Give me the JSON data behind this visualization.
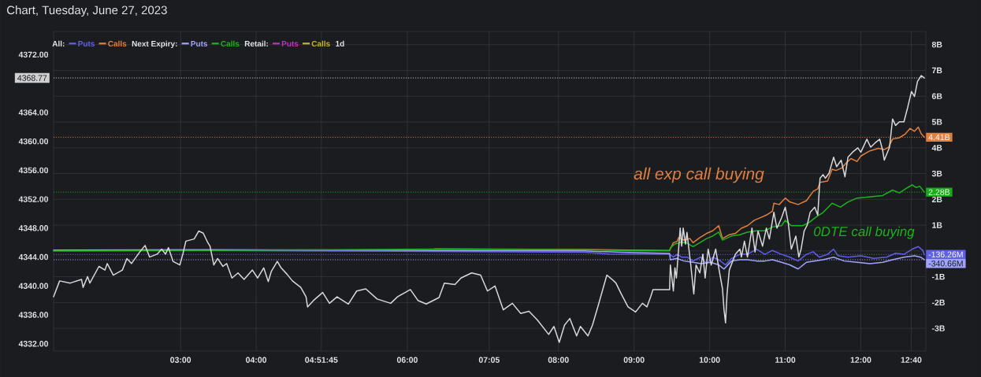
{
  "chart_data": {
    "type": "line",
    "title": "Chart, Tuesday, June 27, 2023",
    "xlim": [
      1.32,
      12.86
    ],
    "xticks": [
      {
        "value": 3,
        "label": "03:00"
      },
      {
        "value": 4,
        "label": "04:00"
      },
      {
        "value": 4.8625,
        "label": "04:51:45"
      },
      {
        "value": 6,
        "label": "06:00"
      },
      {
        "value": 7.0833,
        "label": "07:05"
      },
      {
        "value": 8,
        "label": "08:00"
      },
      {
        "value": 9,
        "label": "09:00"
      },
      {
        "value": 10,
        "label": "10:00"
      },
      {
        "value": 11,
        "label": "11:00"
      },
      {
        "value": 12,
        "label": "12:00"
      },
      {
        "value": 12.6667,
        "label": "12:40"
      }
    ],
    "ylim": [
      4331,
      4375.2
    ],
    "yticks": [
      {
        "value": 4332,
        "label": "4332.00"
      },
      {
        "value": 4336,
        "label": "4336.00"
      },
      {
        "value": 4340,
        "label": "4340.00"
      },
      {
        "value": 4344,
        "label": "4344.00"
      },
      {
        "value": 4348,
        "label": "4348.00"
      },
      {
        "value": 4352,
        "label": "4352.00"
      },
      {
        "value": 4356,
        "label": "4356.00"
      },
      {
        "value": 4360,
        "label": "4360.00"
      },
      {
        "value": 4364,
        "label": "4364.00"
      },
      {
        "value": 4372,
        "label": "4372.00"
      }
    ],
    "y2lim": [
      -3.88,
      8.51
    ],
    "y2ticks": [
      {
        "value": -3,
        "label": "-3B"
      },
      {
        "value": -2,
        "label": "-2B"
      },
      {
        "value": -1,
        "label": "-1B"
      },
      {
        "value": 0,
        "label": null
      },
      {
        "value": 1,
        "label": "1B"
      },
      {
        "value": 2,
        "label": "2B"
      },
      {
        "value": 3,
        "label": "3B"
      },
      {
        "value": 4,
        "label": "4B"
      },
      {
        "value": 5,
        "label": "5B"
      },
      {
        "value": 6,
        "label": "6B"
      },
      {
        "value": 7,
        "label": "7B"
      },
      {
        "value": 8,
        "label": "8B"
      }
    ],
    "grid": true,
    "legend": "top left",
    "series": [
      {
        "color": "#d8d8d8",
        "x": [
          1.32,
          1.4,
          1.54,
          1.69,
          1.71,
          1.77,
          1.8,
          1.92,
          2.0,
          2.03,
          2.11,
          2.23,
          2.29,
          2.35,
          2.46,
          2.53,
          2.59,
          2.69,
          2.75,
          2.8,
          2.84,
          2.9,
          2.99,
          3.03,
          3.07,
          3.18,
          3.24,
          3.3,
          3.36,
          3.39,
          3.44,
          3.49,
          3.56,
          3.61,
          3.68,
          3.76,
          3.84,
          3.95,
          4.02,
          4.1,
          4.16,
          4.2,
          4.28,
          4.33,
          4.41,
          4.48,
          4.59,
          4.66,
          4.68,
          4.76,
          4.88,
          4.97,
          5.07,
          5.22,
          5.33,
          5.45,
          5.6,
          5.78,
          5.87,
          6.04,
          6.14,
          6.25,
          6.42,
          6.49,
          6.63,
          6.71,
          6.85,
          6.97,
          7.06,
          7.16,
          7.27,
          7.39,
          7.5,
          7.61,
          7.72,
          7.87,
          7.94,
          8.01,
          8.08,
          8.15,
          8.24,
          8.29,
          8.39,
          8.45,
          8.52,
          8.58,
          8.64,
          8.71,
          8.76,
          8.83,
          8.92,
          9.02,
          9.11,
          9.17,
          9.22,
          9.25,
          9.47,
          9.48,
          9.52,
          9.54,
          9.56,
          9.61,
          9.63,
          9.65,
          9.68,
          9.7,
          9.75,
          9.79,
          9.82,
          9.87,
          9.91,
          9.94,
          9.98,
          10.02,
          10.08,
          10.12,
          10.17,
          10.19,
          10.21,
          10.23,
          10.26,
          10.3,
          10.34,
          10.4,
          10.42,
          10.46,
          10.5,
          10.56,
          10.6,
          10.64,
          10.7,
          10.75,
          10.79,
          10.85,
          10.89,
          10.95,
          11.0,
          11.04,
          11.08,
          11.14,
          11.18,
          11.21,
          11.25,
          11.29,
          11.33,
          11.39,
          11.43,
          11.46,
          11.5,
          11.53,
          11.58,
          11.64,
          11.68,
          11.74,
          11.79,
          11.83,
          11.89,
          11.96,
          12.0,
          12.08,
          12.13,
          12.19,
          12.25,
          12.29,
          12.31,
          12.38,
          12.42,
          12.46,
          12.51,
          12.57,
          12.62,
          12.67,
          12.71,
          12.75,
          12.8,
          12.84
        ],
        "values": [
          4338.5,
          4340.7,
          4340.4,
          4340.9,
          4339.8,
          4341.3,
          4340.4,
          4342.7,
          4342.2,
          4343.1,
          4341.5,
          4342.2,
          4343.8,
          4343.1,
          4344.7,
          4345.6,
          4344.0,
          4344.4,
          4345.1,
          4344.4,
          4345.3,
          4343.4,
          4342.9,
          4344.4,
          4346.2,
          4346.5,
          4347.6,
          4347.3,
          4346.0,
          4345.5,
          4342.9,
          4343.8,
          4342.7,
          4343.1,
          4341.1,
          4341.8,
          4340.9,
          4342.2,
          4341.1,
          4342.5,
          4340.6,
          4342.0,
          4343.4,
          4342.5,
          4341.6,
          4340.7,
          4339.8,
          4338.5,
          4337.1,
          4338.0,
          4339.1,
          4337.6,
          4338.5,
          4337.5,
          4339.3,
          4339.6,
          4338.2,
          4337.6,
          4338.5,
          4339.5,
          4338.0,
          4337.5,
          4338.4,
          4340.4,
          4340.2,
          4341.1,
          4341.8,
          4341.5,
          4339.3,
          4340.0,
          4336.7,
          4337.6,
          4336.2,
          4336.5,
          4335.3,
          4333.3,
          4334.4,
          4332.2,
          4334.6,
          4335.5,
          4333.1,
          4334.4,
          4333.1,
          4334.6,
          4337.1,
          4339.3,
          4341.5,
          4340.9,
          4340.4,
          4338.9,
          4337.1,
          4336.4,
          4337.6,
          4337.1,
          4338.5,
          4339.5,
          4339.5,
          4342.9,
          4339.3,
          4342.5,
          4341.1,
          4348.0,
          4345.5,
          4348.0,
          4345.8,
          4347.4,
          4342.9,
          4338.9,
          4342.9,
          4341.8,
          4344.4,
          4341.1,
          4345.1,
          4342.9,
          4345.1,
          4342.5,
          4339.6,
          4336.7,
          4334.9,
          4338.9,
          4342.2,
          4343.3,
          4344.4,
          4345.1,
          4344.0,
          4346.2,
          4344.0,
          4348.0,
          4344.7,
          4347.6,
          4345.5,
          4348.0,
          4346.5,
          4350.2,
          4348.0,
          4349.4,
          4350.9,
          4348.7,
          4345.1,
          4346.9,
          4344.0,
          4345.1,
          4347.6,
          4348.4,
          4350.2,
          4350.9,
          4349.8,
          4354.9,
          4355.4,
          4354.9,
          4355.6,
          4357.8,
          4356.5,
          4357.4,
          4355.1,
          4357.8,
          4358.5,
          4359.1,
          4358.5,
          4360.3,
          4359.2,
          4359.8,
          4360.3,
          4358.7,
          4357.4,
          4359.2,
          4363.1,
          4362.2,
          4362.7,
          4362.7,
          4364.7,
          4366.9,
          4366.2,
          4368.3,
          4369.1,
          4368.77
        ]
      },
      {
        "name": "Puts",
        "color": "#5f5fe8",
        "axis": "y2",
        "x": [
          1.32,
          3.39,
          6.36,
          8.34,
          8.67,
          9.47,
          9.52,
          9.57,
          9.63,
          9.7,
          9.78,
          9.88,
          9.96,
          10.04,
          10.12,
          10.21,
          10.29,
          10.4,
          10.5,
          10.62,
          10.73,
          10.83,
          10.95,
          11.06,
          11.17,
          11.28,
          11.37,
          11.45,
          11.56,
          11.64,
          11.7,
          11.83,
          12.0,
          12.17,
          12.34,
          12.46,
          12.57,
          12.68,
          12.76,
          12.82,
          12.84
        ],
        "values": [
          0.0,
          0.02,
          -0.02,
          -0.05,
          -0.12,
          -0.13,
          -0.24,
          -0.13,
          -0.24,
          -0.24,
          -0.39,
          -0.24,
          -0.49,
          -0.24,
          -0.34,
          -0.54,
          -0.29,
          -0.13,
          -0.13,
          0.07,
          -0.13,
          0.02,
          -0.13,
          -0.24,
          -0.39,
          -0.13,
          -0.03,
          -0.24,
          -0.13,
          0.07,
          -0.19,
          -0.24,
          -0.19,
          -0.29,
          -0.24,
          -0.09,
          -0.13,
          0.07,
          0.17,
          0.02,
          -0.14
        ]
      },
      {
        "name": "Calls",
        "color": "#e27f3e",
        "axis": "y2",
        "x": [
          6.36,
          8.34,
          8.91,
          9.47,
          9.52,
          9.57,
          9.59,
          9.66,
          9.74,
          9.78,
          9.87,
          9.96,
          10.04,
          10.12,
          10.17,
          10.26,
          10.34,
          10.42,
          10.5,
          10.59,
          10.67,
          10.75,
          10.83,
          10.85,
          10.92,
          11.0,
          11.06,
          11.17,
          11.28,
          11.37,
          11.43,
          11.46,
          11.56,
          11.62,
          11.67,
          11.75,
          11.81,
          11.87,
          11.95,
          12.0,
          12.12,
          12.23,
          12.31,
          12.37,
          12.42,
          12.51,
          12.59,
          12.65,
          12.71,
          12.76,
          12.8,
          12.84
        ],
        "values": [
          0.08,
          0.06,
          0.03,
          0.02,
          0.32,
          0.37,
          0.52,
          0.42,
          0.48,
          0.32,
          0.52,
          0.68,
          0.78,
          0.98,
          0.48,
          0.63,
          0.68,
          0.88,
          0.98,
          1.19,
          1.29,
          1.39,
          1.54,
          1.85,
          1.8,
          2.05,
          1.9,
          1.8,
          1.95,
          2.31,
          2.41,
          2.66,
          2.71,
          3.17,
          3.12,
          3.22,
          3.42,
          3.58,
          3.47,
          3.68,
          3.88,
          3.98,
          3.93,
          4.03,
          4.34,
          4.39,
          4.54,
          4.75,
          4.64,
          4.8,
          4.54,
          4.41
        ]
      },
      {
        "name": "Puts",
        "color": "#a0a4ff",
        "axis": "y2",
        "x": [
          1.32,
          3.39,
          6.36,
          8.34,
          8.83,
          9.47,
          9.48,
          9.57,
          9.66,
          9.78,
          9.89,
          10.01,
          10.12,
          10.19,
          10.29,
          10.4,
          10.5,
          10.62,
          10.73,
          10.83,
          10.95,
          11.06,
          11.17,
          11.28,
          11.39,
          11.5,
          11.64,
          11.78,
          11.95,
          12.12,
          12.29,
          12.42,
          12.57,
          12.71,
          12.79,
          12.84
        ],
        "values": [
          0.03,
          0.05,
          0.02,
          0.0,
          -0.05,
          -0.1,
          -0.34,
          -0.29,
          -0.39,
          -0.44,
          -0.49,
          -0.44,
          -0.54,
          -0.7,
          -0.39,
          -0.34,
          -0.34,
          -0.39,
          -0.39,
          -0.34,
          -0.44,
          -0.54,
          -0.7,
          -0.44,
          -0.39,
          -0.34,
          -0.24,
          -0.39,
          -0.44,
          -0.49,
          -0.44,
          -0.34,
          -0.24,
          -0.19,
          -0.24,
          -0.34
        ]
      },
      {
        "name": "Calls",
        "color": "#1db31d",
        "axis": "y2",
        "x": [
          1.32,
          3.39,
          6.36,
          8.34,
          8.91,
          9.47,
          9.48,
          9.54,
          9.61,
          9.69,
          9.78,
          9.87,
          9.96,
          10.04,
          10.12,
          10.17,
          10.29,
          10.4,
          10.5,
          10.62,
          10.73,
          10.83,
          10.95,
          11.0,
          11.08,
          11.23,
          11.31,
          11.42,
          11.5,
          11.62,
          11.73,
          11.83,
          11.95,
          12.12,
          12.29,
          12.42,
          12.51,
          12.62,
          12.68,
          12.73,
          12.78,
          12.84
        ],
        "values": [
          0.0,
          0.02,
          0.07,
          0.05,
          0.01,
          0.0,
          0.12,
          0.27,
          0.32,
          0.32,
          0.17,
          0.32,
          0.48,
          0.58,
          0.73,
          0.42,
          0.58,
          0.63,
          0.73,
          0.78,
          0.78,
          0.93,
          0.98,
          1.19,
          0.98,
          0.98,
          1.09,
          1.34,
          1.49,
          1.85,
          1.7,
          1.9,
          2.05,
          2.1,
          2.15,
          2.36,
          2.25,
          2.46,
          2.56,
          2.46,
          2.51,
          2.28
        ]
      },
      {
        "name": "Puts",
        "color": "#c030c0",
        "axis": "y2"
      },
      {
        "name": "Calls",
        "color": "#c9b32a",
        "axis": "y2"
      }
    ],
    "ref_lines": [
      {
        "axis": "y",
        "value": 4368.77,
        "label": "4368.77",
        "color": "#d0d0d0",
        "line_style": "dotted"
      },
      {
        "axis": "y2",
        "value": 4.41,
        "label": "4.41B",
        "color": "#e27f3e",
        "line_style": "dotted"
      },
      {
        "axis": "y2",
        "value": 2.28,
        "label": "2.28B",
        "color": "#16ad16",
        "line_style": "dotted"
      },
      {
        "axis": "y2",
        "value": -0.13626,
        "label": "-136.26M",
        "color": "#5f5fe8",
        "line_style": "dotted"
      },
      {
        "axis": "y2",
        "value": -0.34066,
        "label": "-340.66M",
        "color": "#a0a4ff",
        "line_style": "dotted"
      }
    ],
    "annotations": [
      "All:",
      "Next Expiry:",
      "Retail:",
      "1d",
      "all exp call buying",
      "0DTE call buying"
    ]
  }
}
